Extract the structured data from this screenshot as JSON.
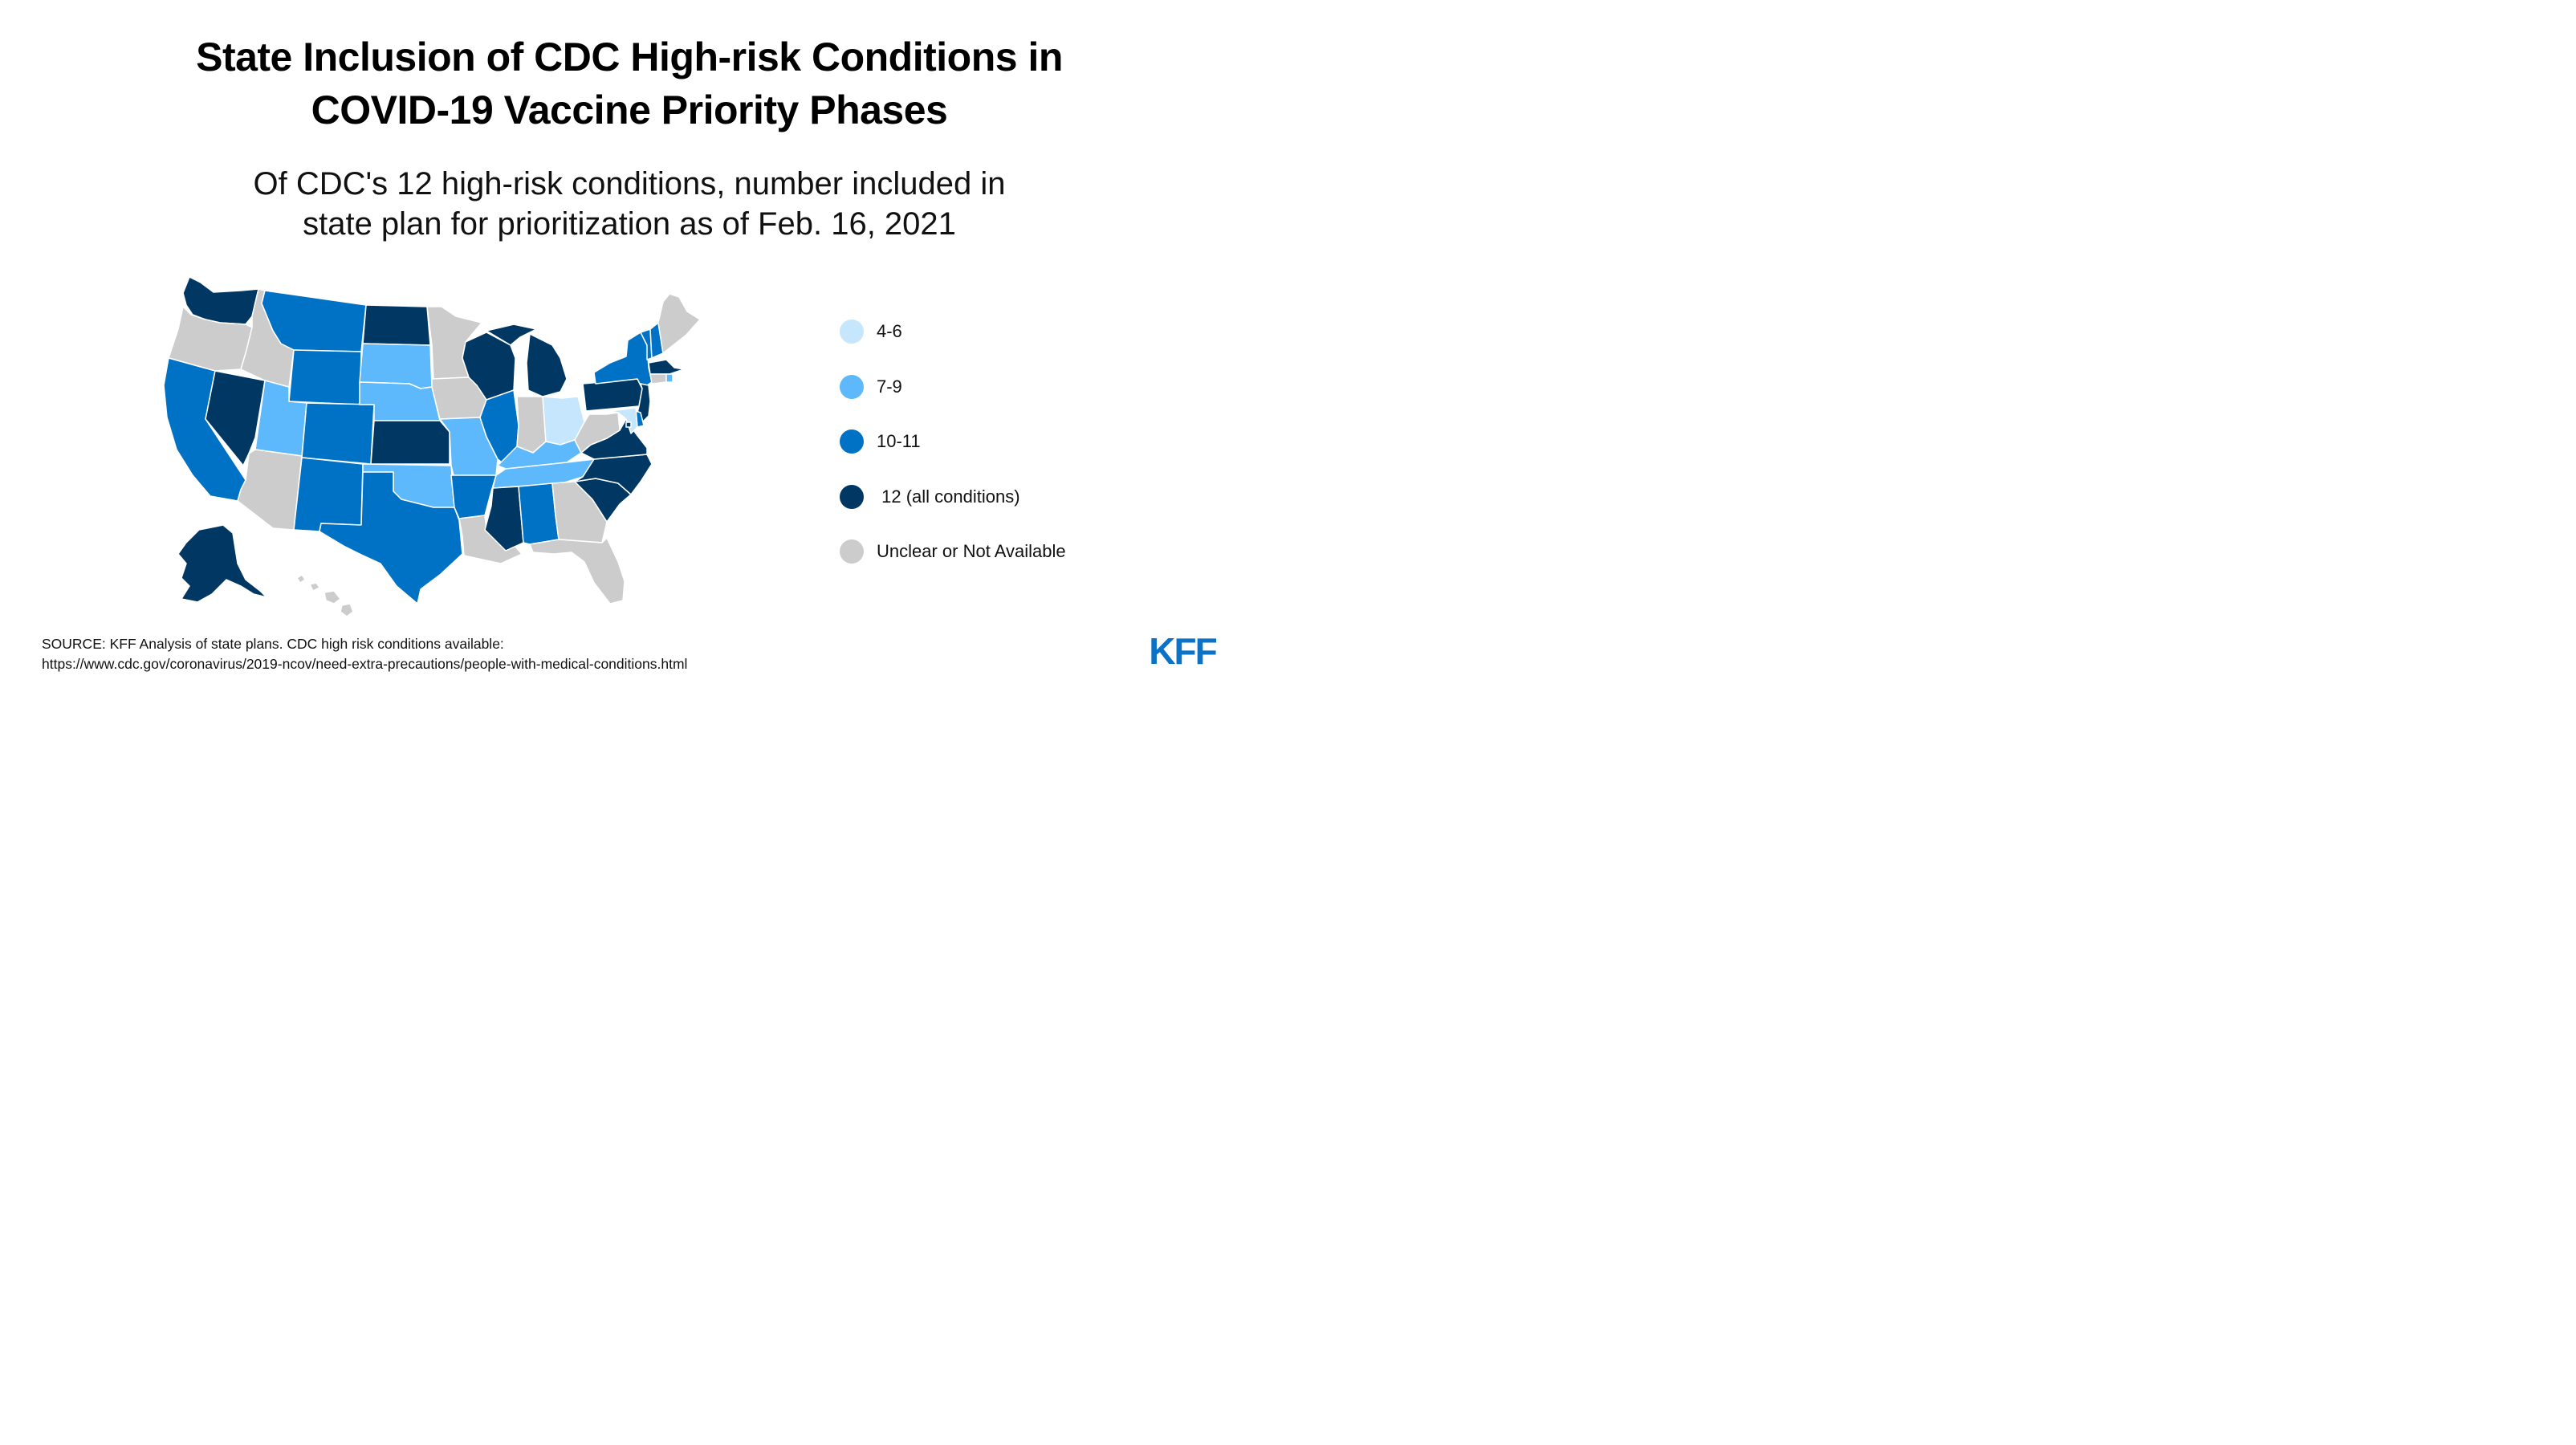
{
  "title": {
    "line1": "State Inclusion of CDC High-risk Conditions in",
    "line2": "COVID-19 Vaccine Priority Phases"
  },
  "subtitle": {
    "line1": "Of CDC's 12 high-risk conditions, number included in",
    "line2": "state plan for prioritization as of Feb. 16, 2021"
  },
  "colors": {
    "4-6": "#c5e6fc",
    "7-9": "#5db9fc",
    "10-11": "#0072c6",
    "12": "#003863",
    "na": "#cccccc",
    "logo": "#0b72c5"
  },
  "legend": [
    {
      "key": "4-6",
      "label": "4-6"
    },
    {
      "key": "7-9",
      "label": "7-9"
    },
    {
      "key": "10-11",
      "label": "10-11"
    },
    {
      "key": "12",
      "label": " 12 (all conditions)"
    },
    {
      "key": "na",
      "label": "Unclear or Not Available"
    }
  ],
  "map": {
    "states": {
      "WA": "12",
      "OR": "na",
      "CA": "10-11",
      "NV": "12",
      "ID": "na",
      "MT": "10-11",
      "WY": "10-11",
      "UT": "7-9",
      "AZ": "na",
      "CO": "10-11",
      "NM": "10-11",
      "ND": "12",
      "SD": "7-9",
      "NE": "7-9",
      "KS": "12",
      "OK": "7-9",
      "TX": "10-11",
      "MN": "na",
      "IA": "na",
      "MO": "7-9",
      "AR": "10-11",
      "LA": "na",
      "WI": "12",
      "MI": "12",
      "IL": "10-11",
      "IN": "na",
      "OH": "4-6",
      "KY": "7-9",
      "TN": "7-9",
      "MS": "12",
      "AL": "10-11",
      "GA": "na",
      "FL": "na",
      "SC": "12",
      "NC": "12",
      "VA": "12",
      "WV": "na",
      "PA": "12",
      "NY": "10-11",
      "VT": "10-11",
      "NH": "10-11",
      "ME": "na",
      "MA": "12",
      "CT": "na",
      "RI": "7-9",
      "NJ": "12",
      "DE": "10-11",
      "MD": "4-6",
      "DC": "12",
      "AK": "12",
      "HI": "na"
    }
  },
  "source": {
    "line1": "SOURCE: KFF Analysis of state plans. CDC high risk conditions available:",
    "line2": "https://www.cdc.gov/coronavirus/2019-ncov/need-extra-precautions/people-with-medical-conditions.html"
  },
  "logo": {
    "text": "KFF"
  }
}
